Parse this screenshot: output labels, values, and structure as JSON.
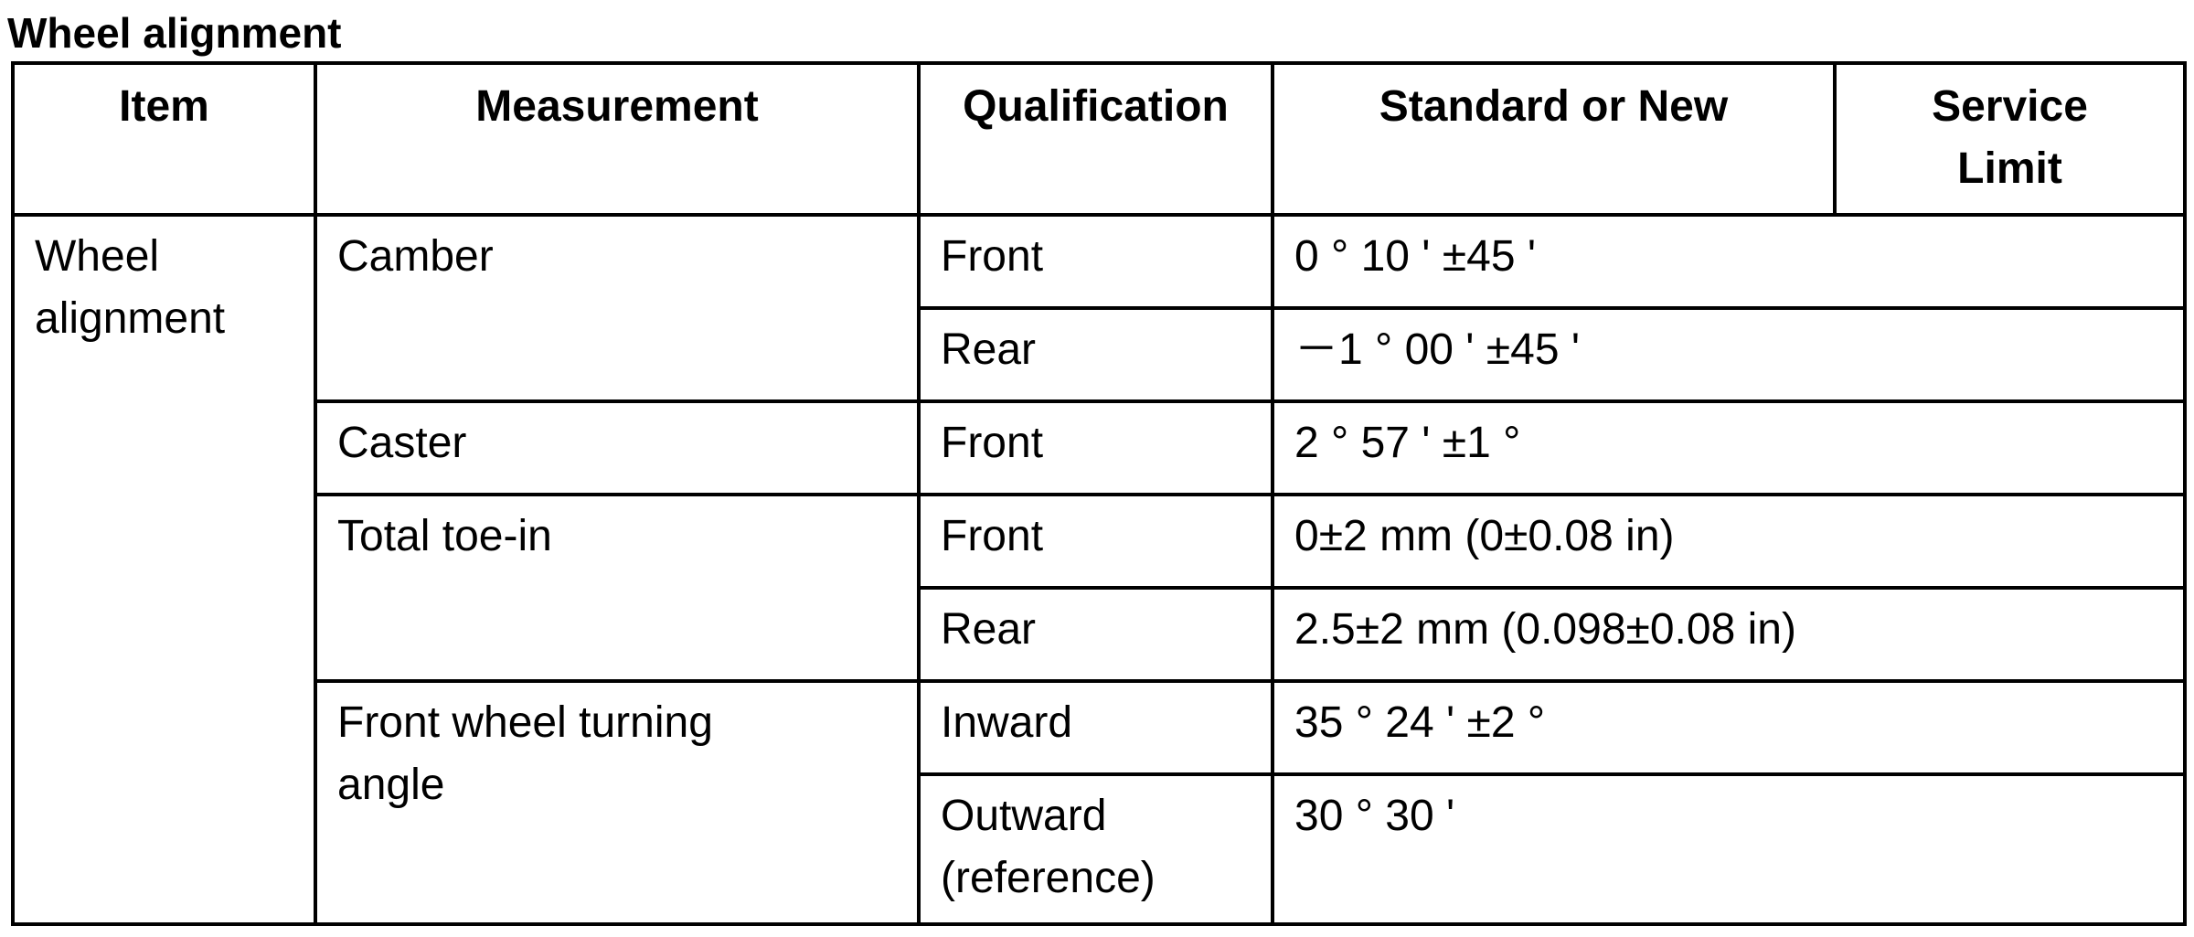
{
  "title": "Wheel alignment",
  "table": {
    "headers": [
      "Item",
      "Measurement",
      "Qualification",
      "Standard or New",
      "Service Limit"
    ],
    "item": "Wheel alignment",
    "groups": [
      {
        "measurement": "Camber",
        "rows": [
          {
            "qualification": "Front",
            "standard": "0 ° 10 ' ±45 '"
          },
          {
            "qualification": "Rear",
            "standard": "－1 ° 00 ' ±45 '"
          }
        ]
      },
      {
        "measurement": "Caster",
        "rows": [
          {
            "qualification": "Front",
            "standard": "2 ° 57 ' ±1 °"
          }
        ]
      },
      {
        "measurement": "Total toe-in",
        "rows": [
          {
            "qualification": "Front",
            "standard": "0±2 mm (0±0.08 in)"
          },
          {
            "qualification": "Rear",
            "standard": "2.5±2 mm (0.098±0.08 in)"
          }
        ]
      },
      {
        "measurement": "Front wheel turning angle",
        "rows": [
          {
            "qualification": "Inward",
            "standard": "35 ° 24 ' ±2 °"
          },
          {
            "qualification": "Outward (reference)",
            "standard": "30 ° 30 '"
          }
        ]
      }
    ]
  }
}
